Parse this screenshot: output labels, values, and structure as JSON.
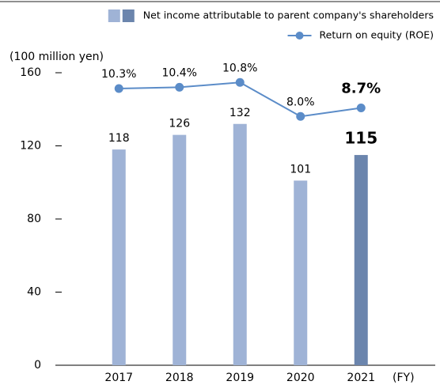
{
  "chart_data": {
    "type": "bar_line",
    "y_label": "(100 million yen)",
    "x_label": "(FY)",
    "categories": [
      "2017",
      "2018",
      "2019",
      "2020",
      "2021"
    ],
    "ylim": [
      0,
      160
    ],
    "yticks": [
      0,
      40,
      80,
      120,
      160
    ],
    "y2lim": [
      -12.5,
      11.6
    ],
    "legend": "top-right",
    "emphasis": [
      false,
      false,
      false,
      false,
      true
    ],
    "series": [
      {
        "name": "Net income attributable to parent company's shareholders",
        "type": "bar",
        "color": "#9fb3d6",
        "colors": [
          "#9fb3d6",
          "#9fb3d6",
          "#9fb3d6",
          "#9fb3d6",
          "#6b85ad"
        ],
        "values": [
          118,
          126,
          132,
          101,
          115
        ]
      },
      {
        "name": "Return on equity (ROE)",
        "type": "line",
        "axis": "y2",
        "color": "#5b8cc8",
        "values": [
          10.3,
          10.4,
          10.8,
          8.0,
          8.7
        ],
        "value_labels": [
          "10.3%",
          "10.4%",
          "10.8%",
          "8.0%",
          "8.7%"
        ]
      }
    ]
  }
}
